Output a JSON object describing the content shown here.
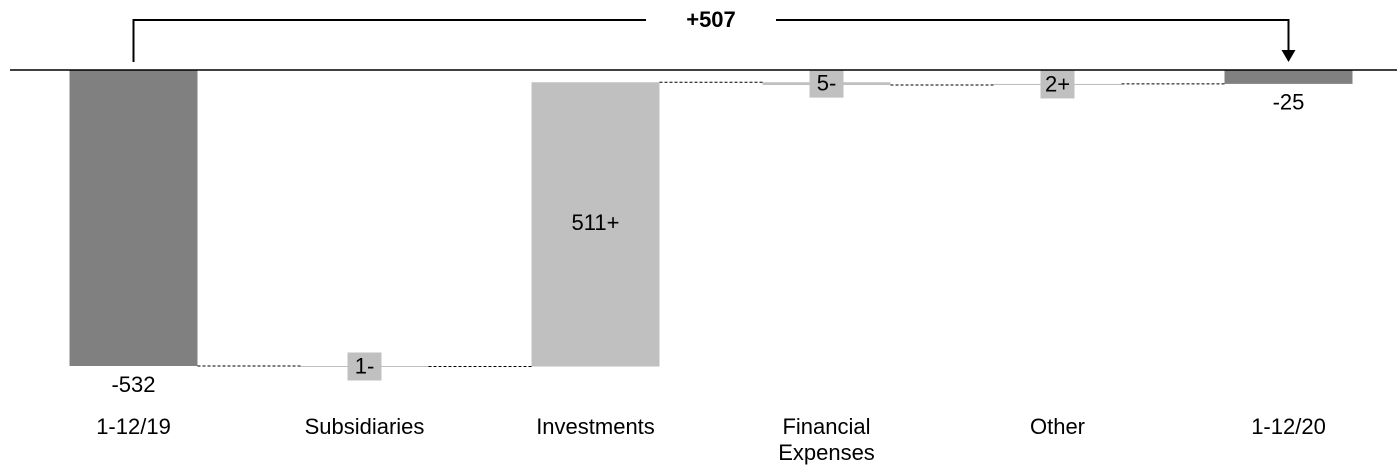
{
  "chart_data": {
    "type": "waterfall",
    "categories": [
      "1-12/19",
      "Subsidiaries",
      "Investments",
      "Financial Expenses",
      "Other",
      "1-12/20"
    ],
    "values": [
      -532,
      -1,
      511,
      -5,
      2,
      -25
    ],
    "value_labels": [
      "-532",
      "1-",
      "511+",
      "5-",
      "2+",
      "-25"
    ],
    "colors": [
      "#808080",
      "#c0c0c0",
      "#c0c0c0",
      "#c0c0c0",
      "#c0c0c0",
      "#808080"
    ],
    "annotation": "+507",
    "ylim": [
      -550,
      0
    ]
  }
}
